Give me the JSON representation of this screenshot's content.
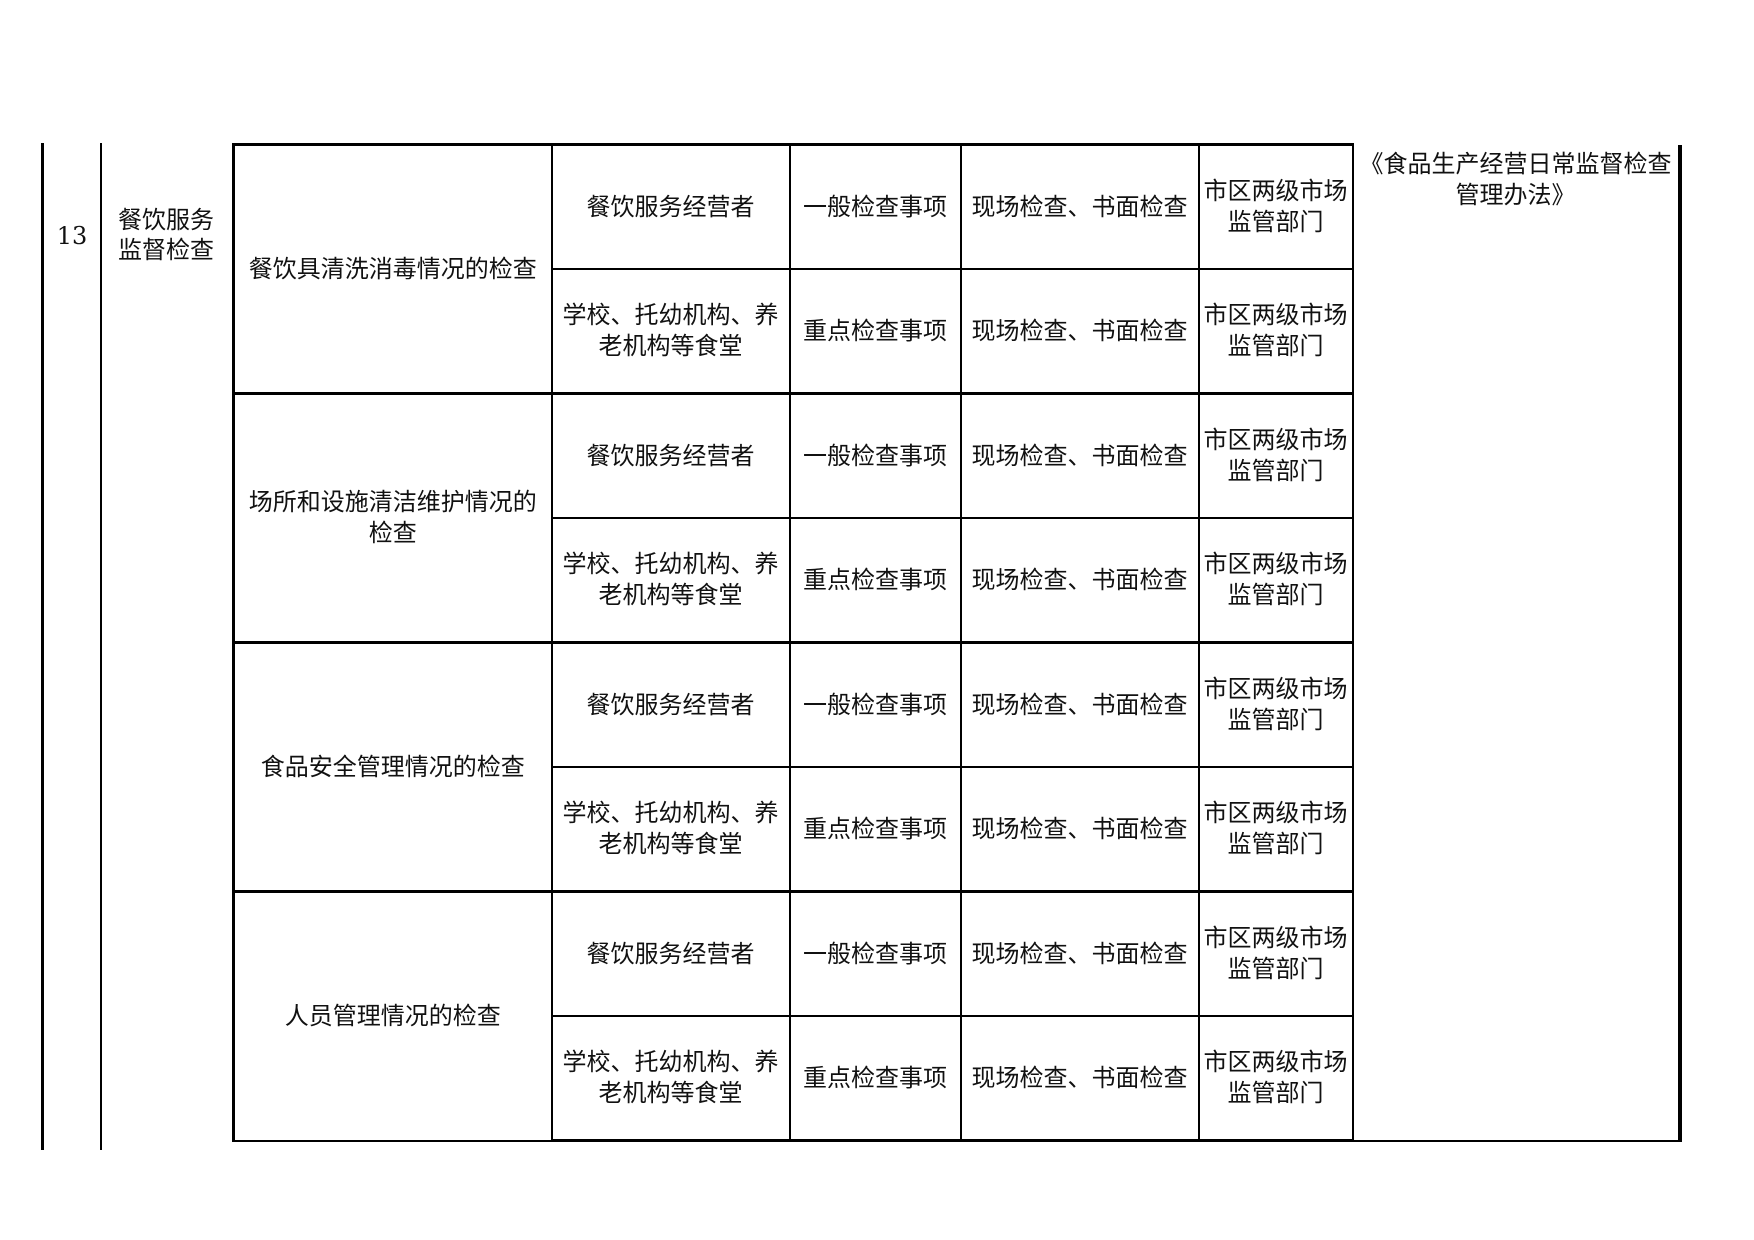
{
  "row": {
    "number": "13",
    "category": "餐饮服务监督检查",
    "basis": "《食品生产经营日常监督检查管理办法》",
    "groups": [
      {
        "item": "餐饮具清洗消毒情况的检查",
        "subrows": [
          {
            "object": "餐饮服务经营者",
            "type": "一般检查事项",
            "method": "现场检查、书面检查",
            "agency": "市区两级市场监管部门"
          },
          {
            "object": "学校、托幼机构、养老机构等食堂",
            "type": "重点检查事项",
            "method": "现场检查、书面检查",
            "agency": "市区两级市场监管部门"
          }
        ]
      },
      {
        "item": "场所和设施清洁维护情况的检查",
        "subrows": [
          {
            "object": "餐饮服务经营者",
            "type": "一般检查事项",
            "method": "现场检查、书面检查",
            "agency": "市区两级市场监管部门"
          },
          {
            "object": "学校、托幼机构、养老机构等食堂",
            "type": "重点检查事项",
            "method": "现场检查、书面检查",
            "agency": "市区两级市场监管部门"
          }
        ]
      },
      {
        "item": "食品安全管理情况的检查",
        "subrows": [
          {
            "object": "餐饮服务经营者",
            "type": "一般检查事项",
            "method": "现场检查、书面检查",
            "agency": "市区两级市场监管部门"
          },
          {
            "object": "学校、托幼机构、养老机构等食堂",
            "type": "重点检查事项",
            "method": "现场检查、书面检查",
            "agency": "市区两级市场监管部门"
          }
        ]
      },
      {
        "item": "人员管理情况的检查",
        "subrows": [
          {
            "object": "餐饮服务经营者",
            "type": "一般检查事项",
            "method": "现场检查、书面检查",
            "agency": "市区两级市场监管部门"
          },
          {
            "object": "学校、托幼机构、养老机构等食堂",
            "type": "重点检查事项",
            "method": "现场检查、书面检查",
            "agency": "市区两级市场监管部门"
          }
        ]
      }
    ]
  }
}
